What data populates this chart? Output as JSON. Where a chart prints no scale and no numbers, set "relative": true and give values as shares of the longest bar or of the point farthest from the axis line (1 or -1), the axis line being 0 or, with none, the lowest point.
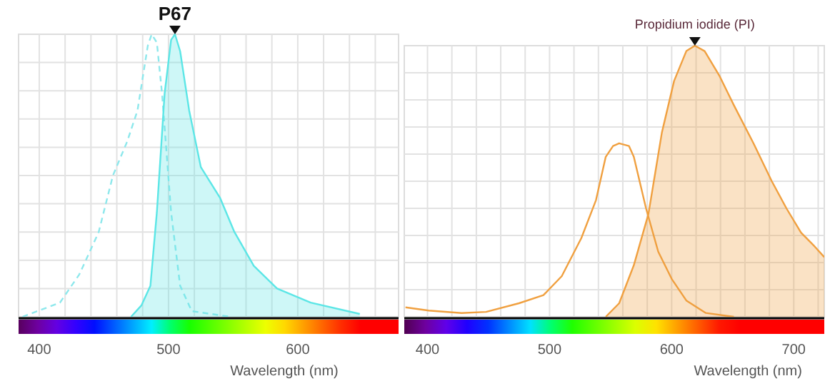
{
  "chart_data": [
    {
      "type": "area",
      "title": "P67",
      "xlabel": "Wavelength (nm)",
      "relative": true,
      "grid": true,
      "xlim": [
        384,
        678
      ],
      "xticks": [
        400,
        {
          "value": 420,
          "label": null
        },
        {
          "value": 440,
          "label": null
        },
        {
          "value": 460,
          "label": null
        },
        {
          "value": 480,
          "label": null
        },
        500,
        {
          "value": 520,
          "label": null
        },
        {
          "value": 540,
          "label": null
        },
        {
          "value": 560,
          "label": null
        },
        {
          "value": 580,
          "label": null
        },
        600,
        {
          "value": 620,
          "label": null
        },
        {
          "value": 640,
          "label": null
        },
        {
          "value": 660,
          "label": null
        }
      ],
      "series": [
        {
          "type": "line",
          "line_style": "dashed",
          "color": "#8ee8ec",
          "x": [
            387,
            416,
            431,
            446,
            457,
            468,
            476,
            484,
            487,
            491,
            495,
            502,
            509,
            518,
            548
          ],
          "values": [
            0,
            0.05,
            0.15,
            0.3,
            0.5,
            0.62,
            0.73,
            0.96,
            1,
            0.97,
            0.79,
            0.37,
            0.11,
            0.02,
            0
          ]
        },
        {
          "color": "#5ce6e6",
          "x": [
            471,
            479,
            486,
            491,
            497,
            502,
            505,
            509,
            516,
            525,
            540,
            551,
            566,
            584,
            610,
            648
          ],
          "values": [
            0,
            0.04,
            0.11,
            0.37,
            0.79,
            0.98,
            1,
            0.94,
            0.73,
            0.53,
            0.42,
            0.3,
            0.18,
            0.1,
            0.05,
            0.01
          ]
        }
      ]
    },
    {
      "type": "area",
      "title": "Propidium iodide (PI)",
      "xlabel": "Wavelength (nm)",
      "relative": true,
      "grid": true,
      "xlim": [
        381,
        725
      ],
      "xticks": [
        400,
        {
          "value": 420,
          "label": null
        },
        {
          "value": 440,
          "label": null
        },
        {
          "value": 460,
          "label": null
        },
        {
          "value": 480,
          "label": null
        },
        500,
        {
          "value": 520,
          "label": null
        },
        {
          "value": 540,
          "label": null
        },
        {
          "value": 560,
          "label": null
        },
        {
          "value": 580,
          "label": null
        },
        600,
        {
          "value": 620,
          "label": null
        },
        {
          "value": 640,
          "label": null
        },
        {
          "value": 660,
          "label": null
        },
        {
          "value": 680,
          "label": null
        },
        700,
        {
          "value": 720,
          "label": null
        }
      ],
      "series": [
        {
          "type": "line",
          "line_style": "solid",
          "color": "#f0a040",
          "x": [
            382,
            401,
            428,
            448,
            475,
            495,
            510,
            526,
            538,
            546,
            552,
            557,
            565,
            569,
            579,
            589,
            600,
            612,
            628,
            651
          ],
          "values": [
            0.035,
            0.023,
            0.014,
            0.018,
            0.05,
            0.08,
            0.15,
            0.29,
            0.43,
            0.59,
            0.63,
            0.64,
            0.63,
            0.59,
            0.4,
            0.24,
            0.14,
            0.06,
            0.014,
            0
          ]
        },
        {
          "color": "#f0a040",
          "x": [
            546,
            557,
            569,
            581,
            592,
            602,
            612,
            619,
            627,
            639,
            651,
            667,
            682,
            694,
            706,
            717,
            725
          ],
          "values": [
            0,
            0.05,
            0.19,
            0.38,
            0.68,
            0.87,
            0.98,
            1,
            0.98,
            0.89,
            0.78,
            0.64,
            0.5,
            0.4,
            0.31,
            0.26,
            0.22
          ]
        }
      ]
    }
  ]
}
